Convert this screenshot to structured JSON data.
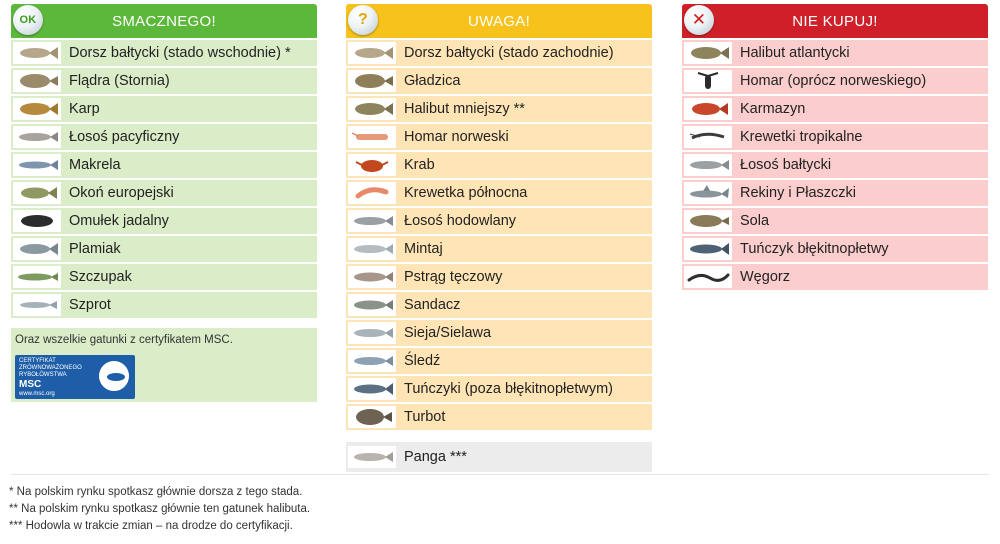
{
  "columns": {
    "ok": {
      "header": "SMACZNEGO!",
      "badge": "OK",
      "color": "#5cb83a",
      "items": [
        {
          "label": "Dorsz bałtycki (stado wschodnie) *",
          "icon": "cod-fish-icon"
        },
        {
          "label": "Flądra (Stornia)",
          "icon": "flounder-icon"
        },
        {
          "label": "Karp",
          "icon": "carp-icon"
        },
        {
          "label": "Łosoś pacyficzny",
          "icon": "salmon-icon"
        },
        {
          "label": "Makrela",
          "icon": "mackerel-icon"
        },
        {
          "label": "Okoń europejski",
          "icon": "perch-icon"
        },
        {
          "label": "Omułek jadalny",
          "icon": "mussel-icon"
        },
        {
          "label": "Plamiak",
          "icon": "haddock-icon"
        },
        {
          "label": "Szczupak",
          "icon": "pike-icon"
        },
        {
          "label": "Szprot",
          "icon": "sprat-icon"
        }
      ],
      "msc_note": "Oraz wszelkie gatunki z certyfikatem MSC.",
      "msc_logo": {
        "line1": "CERTYFIKAT",
        "line2": "ZRÓWNOWAŻONEGO",
        "line3": "RYBOŁÓWSTWA",
        "title": "MSC",
        "url": "www.msc.org"
      }
    },
    "warn": {
      "header": "UWAGA!",
      "badge": "?",
      "color": "#f6c21b",
      "items": [
        {
          "label": "Dorsz bałtycki (stado zachodnie)",
          "icon": "cod-fish-icon"
        },
        {
          "label": "Gładzica",
          "icon": "plaice-icon"
        },
        {
          "label": "Halibut mniejszy **",
          "icon": "halibut-icon"
        },
        {
          "label": "Homar norweski",
          "icon": "langoustine-icon"
        },
        {
          "label": "Krab",
          "icon": "crab-icon"
        },
        {
          "label": "Krewetka północna",
          "icon": "shrimp-icon"
        },
        {
          "label": "Łosoś hodowlany",
          "icon": "salmon-icon"
        },
        {
          "label": "Mintaj",
          "icon": "pollock-icon"
        },
        {
          "label": "Pstrąg tęczowy",
          "icon": "trout-icon"
        },
        {
          "label": "Sandacz",
          "icon": "zander-icon"
        },
        {
          "label": "Sieja/Sielawa",
          "icon": "whitefish-icon"
        },
        {
          "label": "Śledź",
          "icon": "herring-icon"
        },
        {
          "label": "Tuńczyki (poza błękitnopłetwym)",
          "icon": "tuna-icon"
        },
        {
          "label": "Turbot",
          "icon": "turbot-icon"
        }
      ],
      "extra": {
        "label": "Panga ***",
        "icon": "pangasius-icon"
      }
    },
    "bad": {
      "header": "NIE KUPUJ!",
      "badge": "✕",
      "color": "#cf2029",
      "items": [
        {
          "label": "Halibut atlantycki",
          "icon": "halibut-icon"
        },
        {
          "label": "Homar (oprócz norweskiego)",
          "icon": "lobster-icon"
        },
        {
          "label": "Karmazyn",
          "icon": "redfish-icon"
        },
        {
          "label": "Krewetki tropikalne",
          "icon": "tropical-shrimp-icon"
        },
        {
          "label": "Łosoś bałtycki",
          "icon": "salmon-icon"
        },
        {
          "label": "Rekiny i Płaszczki",
          "icon": "shark-icon"
        },
        {
          "label": "Sola",
          "icon": "sole-icon"
        },
        {
          "label": "Tuńczyk błękitnopłetwy",
          "icon": "bluefin-tuna-icon"
        },
        {
          "label": "Węgorz",
          "icon": "eel-icon"
        }
      ]
    }
  },
  "footnotes": [
    "* Na polskim rynku spotkasz głównie dorsza z tego stada.",
    "** Na polskim rynku spotkasz głównie ten gatunek halibuta.",
    "*** Hodowla w trakcie zmian – na drodze do certyfikacji."
  ]
}
